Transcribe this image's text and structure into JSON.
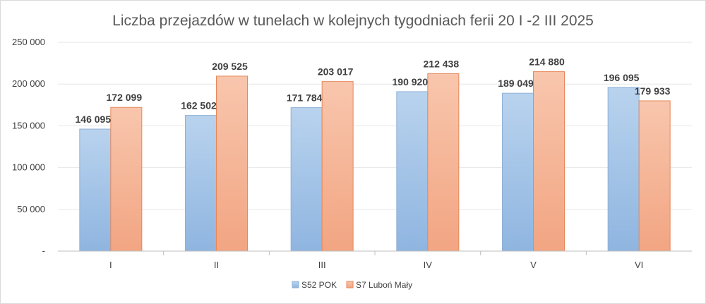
{
  "chart_data": {
    "type": "bar",
    "title": "Liczba przejazdów w tunelach w kolejnych tygodniach ferii 20 I -2 III 2025",
    "categories": [
      "I",
      "II",
      "III",
      "IV",
      "V",
      "VI"
    ],
    "series": [
      {
        "name": "S52 POK",
        "values": [
          146095,
          162502,
          171784,
          190920,
          189049,
          196095
        ],
        "labels": [
          "146 095",
          "162 502",
          "171 784",
          "190 920",
          "189 049",
          "196 095"
        ],
        "color": "#9DC3E6"
      },
      {
        "name": "S7 Luboń Mały",
        "values": [
          172099,
          209525,
          203017,
          212438,
          214880,
          179933
        ],
        "labels": [
          "172 099",
          "209 525",
          "203 017",
          "212 438",
          "214 880",
          "179 933"
        ],
        "color": "#F4B183"
      }
    ],
    "ylim": [
      0,
      250000
    ],
    "y_ticks": [
      0,
      50000,
      100000,
      150000,
      200000,
      250000
    ],
    "y_tick_labels": [
      "-",
      "50 000",
      "100 000",
      "150 000",
      "200 000",
      "250 000"
    ],
    "grid": true,
    "legend_position": "bottom"
  }
}
